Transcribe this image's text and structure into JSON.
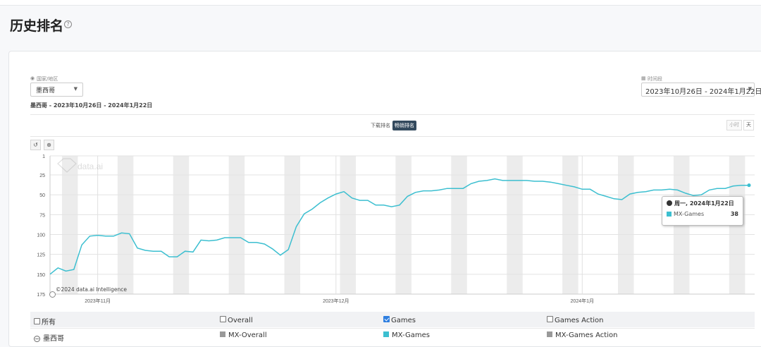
{
  "page": {
    "title": "历史排名"
  },
  "filters": {
    "country_label": "国家/地区",
    "country_value": "墨西哥",
    "period_label": "时间段",
    "period_value": "2023年10月26日 - 2024年1月22日",
    "summary": "墨西哥 - 2023年10月26日 - 2024年1月22日"
  },
  "tabs": {
    "download": "下载排名",
    "revenue": "畅销排名"
  },
  "granularity": {
    "hour": "小时",
    "day": "天"
  },
  "tooltip": {
    "date": "周一, 2024年1月22日",
    "series": "MX-Games",
    "value": "38"
  },
  "watermark": "data.ai",
  "copyright": "©2024 data.ai Intelligence",
  "legend": {
    "header": [
      "所有",
      "Overall",
      "Games",
      "Games Action"
    ],
    "header_checked": [
      false,
      false,
      true,
      false
    ],
    "row_label": "墨西哥",
    "rows": [
      "MX-Overall",
      "MX-Games",
      "MX-Games Action"
    ],
    "row_colors": [
      "#999999",
      "#3cbfd0",
      "#999999"
    ]
  },
  "chart_data": {
    "type": "line",
    "series": [
      {
        "name": "MX-Games",
        "color": "#3cbfd0",
        "x": [
          "2023-10-26",
          "2023-10-27",
          "2023-10-28",
          "2023-10-29",
          "2023-10-30",
          "2023-10-31",
          "2023-11-01",
          "2023-11-02",
          "2023-11-03",
          "2023-11-04",
          "2023-11-05",
          "2023-11-06",
          "2023-11-07",
          "2023-11-08",
          "2023-11-09",
          "2023-11-10",
          "2023-11-11",
          "2023-11-12",
          "2023-11-13",
          "2023-11-14",
          "2023-11-15",
          "2023-11-16",
          "2023-11-17",
          "2023-11-18",
          "2023-11-19",
          "2023-11-20",
          "2023-11-21",
          "2023-11-22",
          "2023-11-23",
          "2023-11-24",
          "2023-11-25",
          "2023-11-26",
          "2023-11-27",
          "2023-11-28",
          "2023-11-29",
          "2023-11-30",
          "2023-12-01",
          "2023-12-02",
          "2023-12-03",
          "2023-12-04",
          "2023-12-05",
          "2023-12-06",
          "2023-12-07",
          "2023-12-08",
          "2023-12-09",
          "2023-12-10",
          "2023-12-11",
          "2023-12-12",
          "2023-12-13",
          "2023-12-14",
          "2023-12-15",
          "2023-12-16",
          "2023-12-17",
          "2023-12-18",
          "2023-12-19",
          "2023-12-20",
          "2023-12-21",
          "2023-12-22",
          "2023-12-23",
          "2023-12-24",
          "2023-12-25",
          "2023-12-26",
          "2023-12-27",
          "2023-12-28",
          "2023-12-29",
          "2023-12-30",
          "2023-12-31",
          "2024-01-01",
          "2024-01-02",
          "2024-01-03",
          "2024-01-04",
          "2024-01-05",
          "2024-01-06",
          "2024-01-07",
          "2024-01-08",
          "2024-01-09",
          "2024-01-10",
          "2024-01-11",
          "2024-01-12",
          "2024-01-13",
          "2024-01-14",
          "2024-01-15",
          "2024-01-16",
          "2024-01-17",
          "2024-01-18",
          "2024-01-19",
          "2024-01-20",
          "2024-01-21",
          "2024-01-22"
        ],
        "y": [
          150,
          142,
          146,
          144,
          113,
          102,
          101,
          102,
          102,
          98,
          99,
          117,
          120,
          121,
          121,
          128,
          128,
          121,
          122,
          107,
          108,
          107,
          104,
          104,
          104,
          110,
          110,
          112,
          118,
          126,
          119,
          90,
          74,
          68,
          60,
          54,
          49,
          46,
          54,
          57,
          57,
          63,
          63,
          65,
          63,
          52,
          47,
          45,
          45,
          44,
          42,
          42,
          42,
          36,
          33,
          32,
          30,
          32,
          32,
          32,
          32,
          33,
          33,
          34,
          36,
          38,
          40,
          43,
          43,
          49,
          52,
          55,
          56,
          49,
          47,
          46,
          44,
          44,
          43,
          44,
          48,
          51,
          50,
          44,
          42,
          42,
          39,
          38,
          38
        ]
      }
    ],
    "x_ticks": [
      "2023年11月",
      "2023年12月",
      "2024年1月"
    ],
    "y_ticks": [
      1,
      25,
      50,
      75,
      100,
      125,
      150,
      175
    ],
    "ylim": [
      1,
      175
    ],
    "y_reversed": true,
    "weekend_shading": true
  }
}
